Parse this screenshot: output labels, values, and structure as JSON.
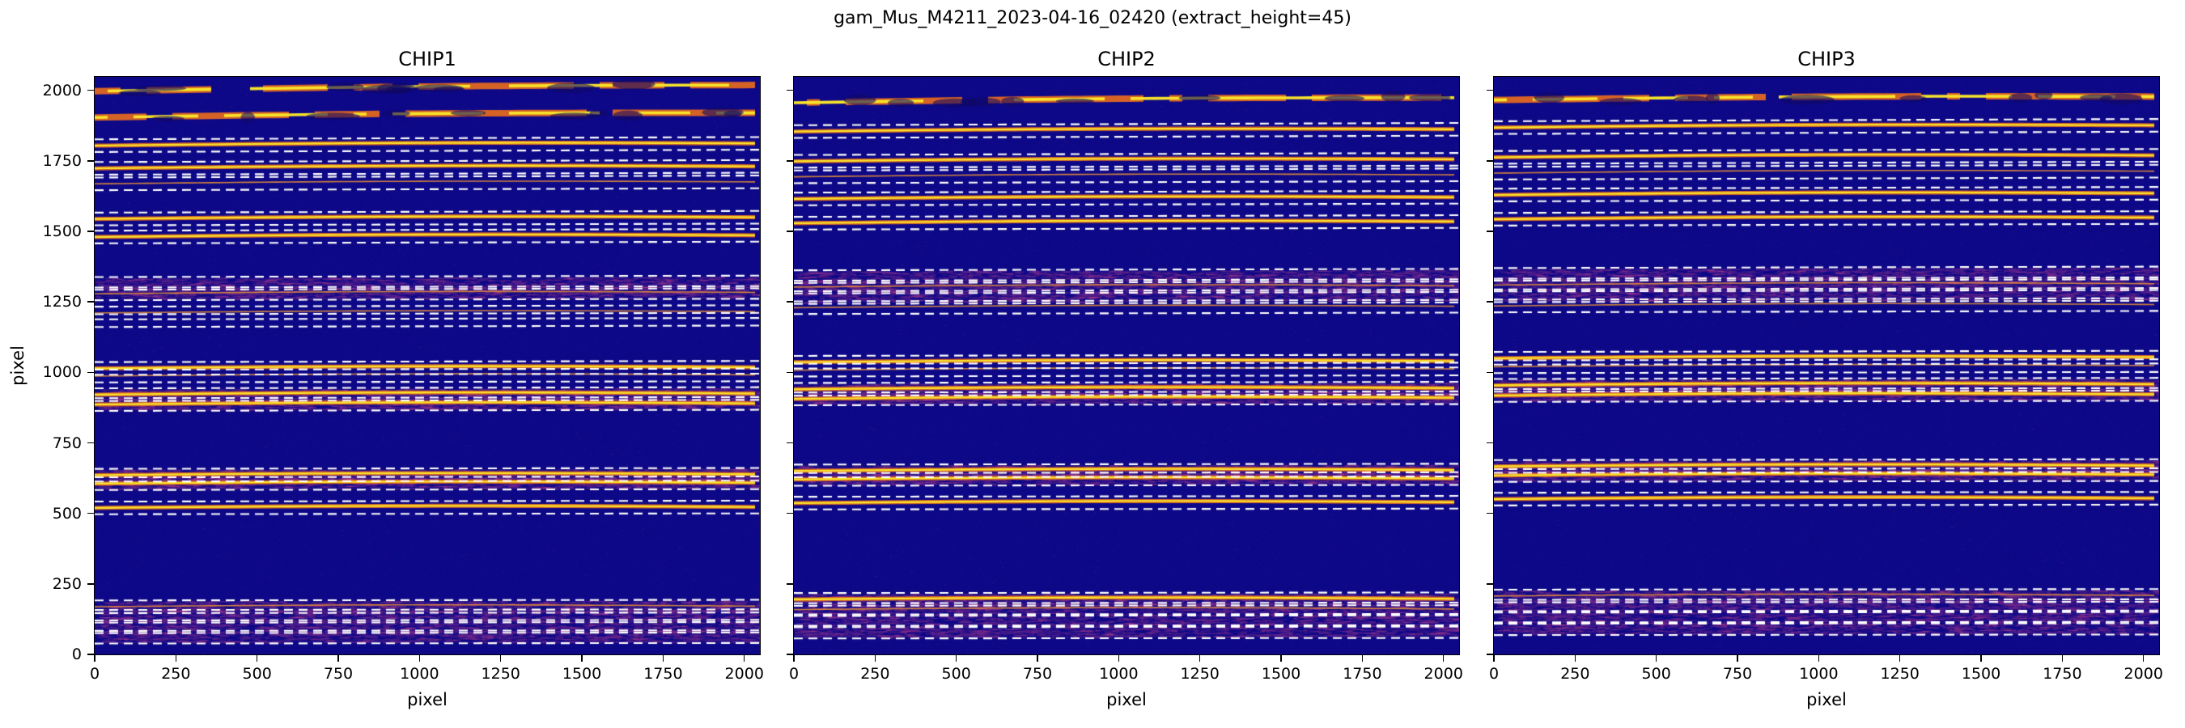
{
  "figure": {
    "title": "gam_Mus_M4211_2023-04-16_02420  (extract_height=45)"
  },
  "chart_data": {
    "type": "heatmap",
    "title": "gam_Mus_M4211_2023-04-16_02420  (extract_height=45)",
    "extract_height": 45,
    "colormap": "plasma",
    "xlabel": "pixel",
    "ylabel": "pixel",
    "xlim": [
      0,
      2048
    ],
    "ylim": [
      0,
      2048
    ],
    "xticks": [
      0,
      250,
      500,
      750,
      1000,
      1250,
      1500,
      1750,
      2000
    ],
    "yticks": [
      0,
      250,
      500,
      750,
      1000,
      1250,
      1500,
      1750,
      2000
    ],
    "grid": false,
    "legend": "none",
    "colors": {
      "background": "#0d0887",
      "noise_low": "#2d1696",
      "noise_mid": "#5a23a0",
      "noise_high": "#963caa",
      "band": "#d04890",
      "trace_glow": "#ec6e1c",
      "trace_core": "#f7e32b",
      "trace_faint": "#f29630",
      "dashed_line": "#ffffff",
      "axis": "#000000"
    },
    "panels": [
      {
        "title": "CHIP1",
        "show_y_labels": true,
        "orders": [
          {
            "y": 2008,
            "trace": "bright",
            "band": false,
            "window": false,
            "tilt": 22,
            "thick": true,
            "gaps": true
          },
          {
            "y": 1912,
            "trace": "bright",
            "band": false,
            "window": false,
            "tilt": 16,
            "thick": true,
            "gaps": true
          },
          {
            "y": 1808,
            "trace": "bright",
            "band": false,
            "window": true,
            "tilt": 8
          },
          {
            "y": 1727,
            "trace": "bright",
            "band": false,
            "window": true,
            "tilt": 7
          },
          {
            "y": 1672,
            "trace": "faint",
            "band": false,
            "window": true,
            "tilt": 7
          },
          {
            "y": 1547,
            "trace": "bright",
            "band": false,
            "window": true,
            "tilt": 6
          },
          {
            "y": 1483,
            "trace": "bright",
            "band": false,
            "window": true,
            "tilt": 6
          },
          {
            "y": 1318,
            "trace": "none",
            "band": true,
            "window": true,
            "tilt": 5
          },
          {
            "y": 1281,
            "trace": "faint",
            "band": true,
            "window": true,
            "tilt": 5
          },
          {
            "y": 1213,
            "trace": "faint",
            "band": false,
            "window": true,
            "tilt": 5
          },
          {
            "y": 1186,
            "trace": "none",
            "band": false,
            "window": true,
            "tilt": 5
          },
          {
            "y": 1016,
            "trace": "bright",
            "band": false,
            "window": true,
            "tilt": 4
          },
          {
            "y": 989,
            "trace": "faint",
            "band": false,
            "window": true,
            "tilt": 4
          },
          {
            "y": 923,
            "trace": "bright",
            "band": true,
            "window": true,
            "tilt": 4
          },
          {
            "y": 888,
            "trace": "bright",
            "band": true,
            "window": true,
            "tilt": 4
          },
          {
            "y": 637,
            "trace": "bright",
            "band": true,
            "window": true,
            "tilt": 3
          },
          {
            "y": 607,
            "trace": "bright",
            "band": true,
            "window": true,
            "tilt": 3
          },
          {
            "y": 521,
            "trace": "bright",
            "band": false,
            "window": true,
            "tilt": 3
          },
          {
            "y": 170,
            "trace": "faint",
            "band": true,
            "window": true,
            "tilt": 2
          },
          {
            "y": 136,
            "trace": "none",
            "band": true,
            "window": true,
            "tilt": 2
          },
          {
            "y": 99,
            "trace": "none",
            "band": true,
            "window": true,
            "tilt": 2
          },
          {
            "y": 62,
            "trace": "none",
            "band": true,
            "window": true,
            "tilt": 2
          }
        ]
      },
      {
        "title": "CHIP2",
        "show_y_labels": false,
        "orders": [
          {
            "y": 1965,
            "trace": "bright",
            "band": false,
            "window": false,
            "tilt": 18,
            "thick": true,
            "gaps": true
          },
          {
            "y": 1858,
            "trace": "bright",
            "band": false,
            "window": true,
            "tilt": 8
          },
          {
            "y": 1752,
            "trace": "bright",
            "band": false,
            "window": true,
            "tilt": 7
          },
          {
            "y": 1697,
            "trace": "faint",
            "band": false,
            "window": true,
            "tilt": 7
          },
          {
            "y": 1618,
            "trace": "bright",
            "band": false,
            "window": true,
            "tilt": 6
          },
          {
            "y": 1532,
            "trace": "bright",
            "band": false,
            "window": true,
            "tilt": 6
          },
          {
            "y": 1342,
            "trace": "none",
            "band": true,
            "window": true,
            "tilt": 5
          },
          {
            "y": 1305,
            "trace": "faint",
            "band": true,
            "window": true,
            "tilt": 5
          },
          {
            "y": 1268,
            "trace": "none",
            "band": true,
            "window": true,
            "tilt": 5
          },
          {
            "y": 1232,
            "trace": "faint",
            "band": false,
            "window": true,
            "tilt": 5
          },
          {
            "y": 1038,
            "trace": "bright",
            "band": false,
            "window": true,
            "tilt": 4
          },
          {
            "y": 1010,
            "trace": "faint",
            "band": false,
            "window": true,
            "tilt": 4
          },
          {
            "y": 942,
            "trace": "bright",
            "band": true,
            "window": true,
            "tilt": 4
          },
          {
            "y": 908,
            "trace": "bright",
            "band": true,
            "window": true,
            "tilt": 4
          },
          {
            "y": 652,
            "trace": "bright",
            "band": true,
            "window": true,
            "tilt": 3
          },
          {
            "y": 622,
            "trace": "bright",
            "band": true,
            "window": true,
            "tilt": 3
          },
          {
            "y": 538,
            "trace": "bright",
            "band": false,
            "window": true,
            "tilt": 3
          },
          {
            "y": 196,
            "trace": "bright",
            "band": true,
            "window": true,
            "tilt": 2
          },
          {
            "y": 160,
            "trace": "faint",
            "band": true,
            "window": true,
            "tilt": 2
          },
          {
            "y": 120,
            "trace": "none",
            "band": true,
            "window": true,
            "tilt": 2
          },
          {
            "y": 80,
            "trace": "none",
            "band": true,
            "window": true,
            "tilt": 2
          }
        ]
      },
      {
        "title": "CHIP3",
        "show_y_labels": false,
        "orders": [
          {
            "y": 1972,
            "trace": "bright",
            "band": false,
            "window": false,
            "tilt": 12,
            "thick": true,
            "gaps": true
          },
          {
            "y": 1872,
            "trace": "bright",
            "band": false,
            "window": true,
            "tilt": 8
          },
          {
            "y": 1766,
            "trace": "bright",
            "band": false,
            "window": true,
            "tilt": 7
          },
          {
            "y": 1710,
            "trace": "faint",
            "band": false,
            "window": true,
            "tilt": 7
          },
          {
            "y": 1632,
            "trace": "bright",
            "band": false,
            "window": true,
            "tilt": 6
          },
          {
            "y": 1546,
            "trace": "bright",
            "band": false,
            "window": true,
            "tilt": 6
          },
          {
            "y": 1350,
            "trace": "none",
            "band": true,
            "window": true,
            "tilt": 5
          },
          {
            "y": 1312,
            "trace": "faint",
            "band": true,
            "window": true,
            "tilt": 5
          },
          {
            "y": 1274,
            "trace": "none",
            "band": true,
            "window": true,
            "tilt": 5
          },
          {
            "y": 1238,
            "trace": "faint",
            "band": false,
            "window": true,
            "tilt": 5
          },
          {
            "y": 1052,
            "trace": "bright",
            "band": false,
            "window": true,
            "tilt": 4
          },
          {
            "y": 1022,
            "trace": "faint",
            "band": false,
            "window": true,
            "tilt": 4
          },
          {
            "y": 956,
            "trace": "bright",
            "band": true,
            "window": true,
            "tilt": 4
          },
          {
            "y": 920,
            "trace": "bright",
            "band": true,
            "window": true,
            "tilt": 4
          },
          {
            "y": 668,
            "trace": "bright",
            "band": true,
            "window": true,
            "tilt": 3
          },
          {
            "y": 636,
            "trace": "bright",
            "band": true,
            "window": true,
            "tilt": 3
          },
          {
            "y": 552,
            "trace": "bright",
            "band": false,
            "window": true,
            "tilt": 3
          },
          {
            "y": 208,
            "trace": "faint",
            "band": true,
            "window": true,
            "tilt": 2
          },
          {
            "y": 172,
            "trace": "none",
            "band": true,
            "window": true,
            "tilt": 2
          },
          {
            "y": 132,
            "trace": "none",
            "band": true,
            "window": true,
            "tilt": 2
          },
          {
            "y": 92,
            "trace": "none",
            "band": true,
            "window": true,
            "tilt": 2
          }
        ]
      }
    ]
  }
}
